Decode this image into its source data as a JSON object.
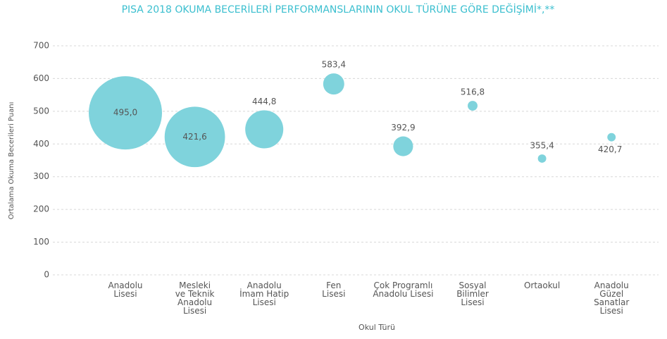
{
  "chart_data": {
    "type": "bubble",
    "title": "PISA 2018 OKUMA BECERİLERİ PERFORMANSLARININ OKUL TÜRÜNE GÖRE DEĞİŞİMİ*,**",
    "x_label": "Okul Türü",
    "y_label": "Ortalama Okuma Becerileri Puanı",
    "categories": [
      [
        "Anadolu",
        "Lisesi"
      ],
      [
        "Mesleki",
        "ve Teknik",
        "Anadolu",
        "Lisesi"
      ],
      [
        "Anadolu",
        "İmam Hatip",
        "Lisesi"
      ],
      [
        "Fen",
        "Lisesi"
      ],
      [
        "Çok Programlı",
        "Anadolu Lisesi"
      ],
      [
        "Sosyal",
        "Bilimler",
        "Lisesi"
      ],
      [
        "Ortaokul"
      ],
      [
        "Anadolu",
        "Güzel",
        "Sanatlar",
        "Lisesi"
      ]
    ],
    "series": [
      {
        "color": "#7fd3dc",
        "values": [
          495.0,
          421.6,
          444.8,
          583.4,
          392.9,
          516.8,
          355.4,
          420.7
        ],
        "value_labels": [
          "495,0",
          "421,6",
          "444,8",
          "583,4",
          "392,9",
          "516,8",
          "355,4",
          "420,7"
        ],
        "sizes": [
          100,
          68,
          27,
          8.3,
          7.3,
          1.8,
          1.3,
          1.3
        ]
      }
    ],
    "ylim": [
      0,
      700
    ],
    "yticks": [
      0,
      100,
      200,
      300,
      400,
      500,
      600,
      700
    ],
    "grid": true
  }
}
